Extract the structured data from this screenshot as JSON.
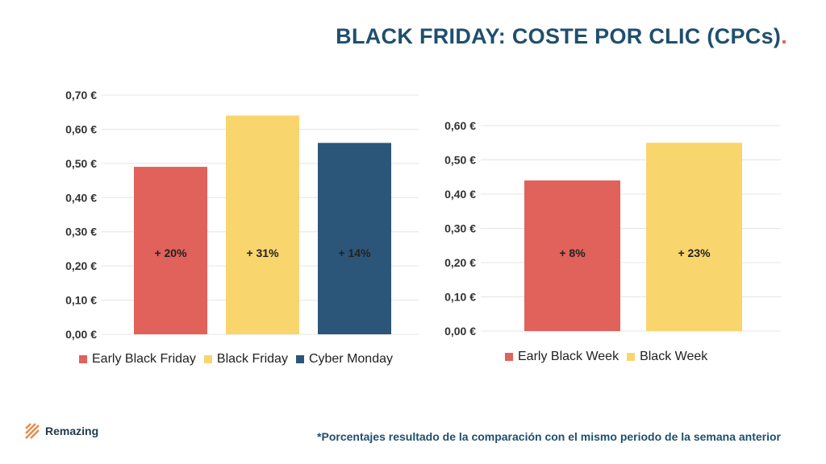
{
  "header": {
    "title": "BLACK FRIDAY: COSTE POR CLIC (CPCs)",
    "dot": "."
  },
  "chart_data": [
    {
      "type": "bar",
      "categories": [
        "Early Black Friday",
        "Black Friday",
        "Cyber Monday"
      ],
      "values": [
        0.49,
        0.64,
        0.56
      ],
      "data_labels": [
        "+ 20%",
        "+ 31%",
        "+ 14%"
      ],
      "colors": [
        "#e0625a",
        "#f9d56e",
        "#2b5579"
      ],
      "ylim": [
        0,
        0.7
      ],
      "yticks": [
        "0,00 €",
        "0,10 €",
        "0,20 €",
        "0,30 €",
        "0,40 €",
        "0,50 €",
        "0,60 €",
        "0,70 €"
      ],
      "grid": true,
      "legend_position": "bottom"
    },
    {
      "type": "bar",
      "categories": [
        "Early Black Week",
        "Black Week"
      ],
      "values": [
        0.44,
        0.55
      ],
      "data_labels": [
        "+ 8%",
        "+ 23%"
      ],
      "colors": [
        "#e0625a",
        "#f9d56e"
      ],
      "ylim": [
        0,
        0.6
      ],
      "yticks": [
        "0,00 €",
        "0,10 €",
        "0,20 €",
        "0,30 €",
        "0,40 €",
        "0,50 €",
        "0,60 €"
      ],
      "grid": true,
      "legend_position": "bottom"
    }
  ],
  "footer": {
    "brand": "Remazing",
    "note": "*Porcentajes resultado de la comparación con el mismo periodo de la semana anterior"
  },
  "colors": {
    "title": "#1f4f6d",
    "accent": "#e0625a",
    "grid": "#e4e4e4"
  }
}
